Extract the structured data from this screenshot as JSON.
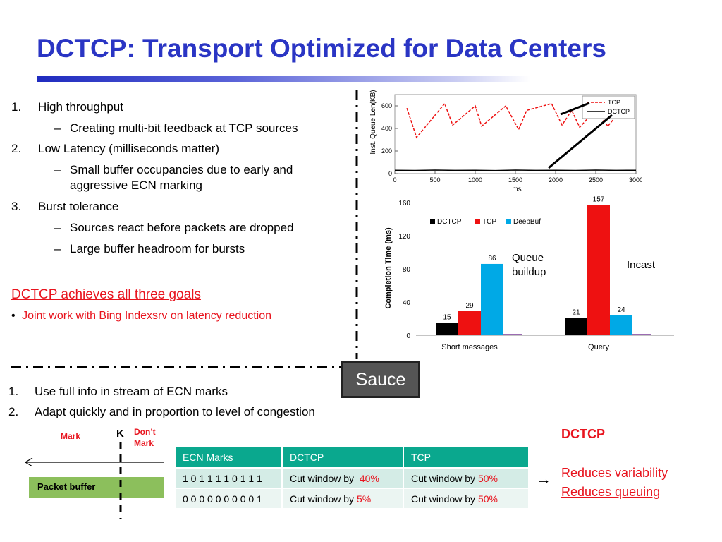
{
  "title": "DCTCP: Transport Optimized for Data Centers",
  "goals": [
    {
      "num": "1.",
      "text": "High throughput",
      "sub": [
        "Creating multi-bit feedback at TCP sources"
      ]
    },
    {
      "num": "2.",
      "text": "Low Latency (milliseconds matter)",
      "sub": [
        "Small buffer occupancies due to early and aggressive ECN marking"
      ]
    },
    {
      "num": "3.",
      "text": "Burst tolerance",
      "sub": [
        "Sources react before packets are dropped",
        "Large buffer headroom for bursts"
      ]
    }
  ],
  "dash": "–",
  "achieves": "DCTCP achieves all three goals",
  "bullet": "•",
  "joint_work": "Joint work with Bing Indexsrv on latency reduction",
  "sauce": "Sauce",
  "sauce_points": [
    {
      "num": "1.",
      "text": "Use full info in stream of ECN marks"
    },
    {
      "num": "2.",
      "text": "Adapt quickly and in proportion to level of congestion"
    }
  ],
  "packet_diagram": {
    "mark": "Mark",
    "k": "K",
    "dont_mark_1": "Don’t",
    "dont_mark_2": "Mark",
    "buffer": "Packet buffer"
  },
  "ecn_table": {
    "headers": [
      "ECN Marks",
      "DCTCP",
      "TCP"
    ],
    "rows": [
      {
        "marks": "1 0 1 1 1 1 0 1 1 1",
        "dctcp_prefix": "Cut window by",
        "dctcp_pct": "40%",
        "tcp_prefix": "Cut window by",
        "tcp_pct": "50%"
      },
      {
        "marks": "0 0 0 0 0 0 0 0 0 1",
        "dctcp_prefix": "Cut window by",
        "dctcp_pct": "5%",
        "tcp_prefix": "Cut window by",
        "tcp_pct": "50%"
      }
    ]
  },
  "arrow_glyph": "→",
  "conclusion": {
    "title": "DCTCP",
    "line1": "Reduces variability",
    "line2": "Reduces queuing"
  },
  "colors": {
    "title": "#2a35c4",
    "red": "#e8141e",
    "table_header": "#0aa88e",
    "dctcp": "#000000",
    "tcp": "#ee1111",
    "deepbuf": "#00a9e6"
  },
  "chart_data": [
    {
      "type": "line",
      "xlabel": "ms",
      "ylabel": "Inst. Queue Len(KB)",
      "xlim": [
        0,
        3000
      ],
      "ylim": [
        0,
        700
      ],
      "xticks": [
        "0",
        "500",
        "1000",
        "1500",
        "2000",
        "2500",
        "3000"
      ],
      "yticks": [
        "0",
        "200",
        "400",
        "600"
      ],
      "legend": "top-right",
      "series": [
        {
          "name": "TCP",
          "style": "dashed",
          "color": "#ee1111",
          "x": [
            150,
            270,
            620,
            720,
            1000,
            1080,
            1380,
            1540,
            1640,
            1950,
            2080,
            2200,
            2300,
            2500,
            2650,
            2800,
            2900
          ],
          "y": [
            580,
            320,
            620,
            430,
            600,
            420,
            600,
            390,
            560,
            620,
            430,
            560,
            410,
            570,
            420,
            550,
            480
          ]
        },
        {
          "name": "DCTCP",
          "style": "solid",
          "color": "#000000",
          "x": [
            0,
            250,
            500,
            750,
            1000,
            1250,
            1500,
            1750,
            2000,
            2250,
            2500,
            2750,
            3000
          ],
          "y": [
            30,
            28,
            31,
            29,
            30,
            27,
            31,
            29,
            30,
            28,
            31,
            29,
            30
          ]
        }
      ]
    },
    {
      "type": "bar",
      "categories": [
        "Short messages",
        "Query"
      ],
      "ylabel": "Completion Time (ms)",
      "ylim": [
        0,
        160
      ],
      "yticks": [
        "0",
        "40",
        "80",
        "120",
        "160"
      ],
      "legend": "top-left",
      "series": [
        {
          "name": "DCTCP",
          "color": "#000000",
          "values": [
            15,
            21
          ]
        },
        {
          "name": "TCP",
          "color": "#ee1111",
          "values": [
            29,
            157
          ]
        },
        {
          "name": "DeepBuf",
          "color": "#00a9e6",
          "values": [
            86,
            24
          ]
        }
      ],
      "annotations": [
        {
          "text": "Queue",
          "text2": "buildup"
        },
        {
          "text": "Incast"
        }
      ]
    }
  ]
}
